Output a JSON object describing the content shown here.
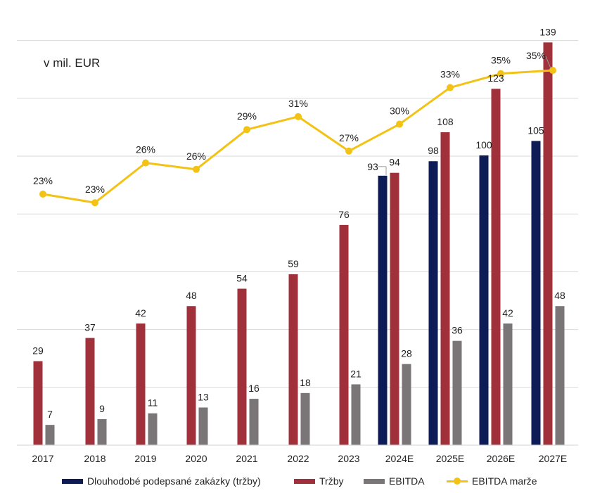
{
  "colors": {
    "contracts": "#0d1b57",
    "revenue": "#a0313a",
    "ebitda": "#7a7576",
    "margin": "#f2c314",
    "grid": "#d9d9d9"
  },
  "chart_data": {
    "type": "bar",
    "title": "",
    "unit_label": "v mil. EUR",
    "xlabel": "",
    "ylabel": "",
    "grid": true,
    "legend_position": "bottom",
    "ylim": [
      0,
      140
    ],
    "categories": [
      "2017",
      "2018",
      "2019",
      "2020",
      "2021",
      "2022",
      "2023",
      "2024E",
      "2025E",
      "2026E",
      "2027E"
    ],
    "series": [
      {
        "name": "Dlouhodobé podepsané zakázky (tržby)",
        "type": "bar",
        "color": "#0d1b57",
        "values": [
          null,
          null,
          null,
          null,
          null,
          null,
          null,
          93,
          98,
          100,
          105
        ],
        "labels": [
          "",
          "",
          "",
          "",
          "",
          "",
          "",
          "93",
          "98",
          "100",
          "105"
        ]
      },
      {
        "name": "Tržby",
        "type": "bar",
        "color": "#a0313a",
        "values": [
          29,
          37,
          42,
          48,
          54,
          59,
          76,
          94,
          108,
          123,
          139
        ],
        "labels": [
          "29",
          "37",
          "42",
          "48",
          "54",
          "59",
          "76",
          "94",
          "108",
          "123",
          "139"
        ]
      },
      {
        "name": "EBITDA",
        "type": "bar",
        "color": "#7a7576",
        "values": [
          7,
          9,
          11,
          13,
          16,
          18,
          21,
          28,
          36,
          42,
          48
        ],
        "labels": [
          "7",
          "9",
          "11",
          "13",
          "16",
          "18",
          "21",
          "28",
          "36",
          "42",
          "48"
        ]
      },
      {
        "name": "EBITDA marže",
        "type": "line",
        "color": "#f2c314",
        "values": [
          23.4,
          22.6,
          26.3,
          25.7,
          29.4,
          30.6,
          27.4,
          29.9,
          33.3,
          34.6,
          34.9
        ],
        "labels": [
          "23%",
          "23%",
          "26%",
          "26%",
          "29%",
          "31%",
          "27%",
          "30%",
          "33%",
          "35%",
          "35%"
        ]
      }
    ]
  }
}
